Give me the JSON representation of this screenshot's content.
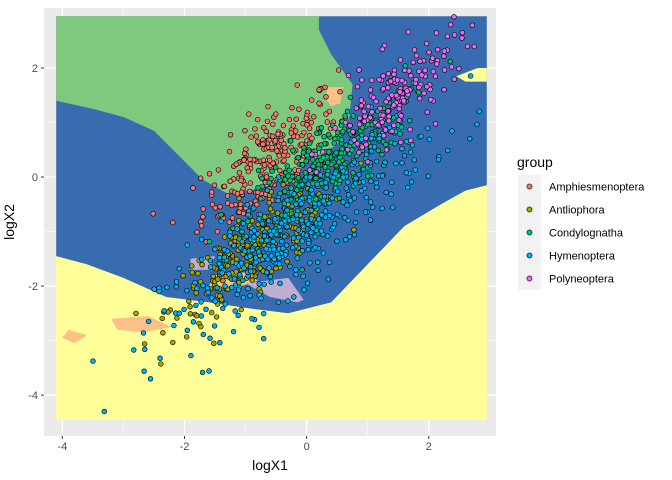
{
  "chart_data": {
    "type": "scatter",
    "xlabel": "logX1",
    "ylabel": "logX2",
    "xlim": [
      -4.3,
      3.1
    ],
    "ylim": [
      -4.75,
      3.1
    ],
    "x_ticks": [
      -4,
      -2,
      0,
      2
    ],
    "y_ticks": [
      -4,
      -2,
      0,
      2
    ],
    "x_tick_labels": [
      "-4",
      "-2",
      "0",
      "2"
    ],
    "y_tick_labels": [
      "-4",
      "-2",
      "0",
      "2"
    ],
    "grid": true,
    "legend": {
      "title": "group",
      "position": "right",
      "entries": [
        "Amphiesmenoptera",
        "Antliophora",
        "Condylognatha",
        "Hymenoptera",
        "Polyneoptera"
      ]
    },
    "series": [
      {
        "name": "Amphiesmenoptera",
        "color": "#F8766D",
        "center": [
          -0.6,
          0.3
        ],
        "spread": [
          0.55,
          0.45
        ]
      },
      {
        "name": "Antliophora",
        "color": "#A3A500",
        "center": [
          -0.8,
          -1.3
        ],
        "spread": [
          0.7,
          0.35
        ]
      },
      {
        "name": "Condylognatha",
        "color": "#00BF7D",
        "center": [
          0.3,
          0.2
        ],
        "spread": [
          0.65,
          0.4
        ]
      },
      {
        "name": "Hymenoptera",
        "color": "#00B0F6",
        "center": [
          -0.2,
          -1.0
        ],
        "spread": [
          1.1,
          0.5
        ]
      },
      {
        "name": "Polyneoptera",
        "color": "#E76BF3",
        "center": [
          1.5,
          1.5
        ],
        "spread": [
          0.55,
          0.4
        ]
      }
    ],
    "background_regions": {
      "colors": {
        "green": "#7FC97F",
        "blue": "#386CB0",
        "yellow": "#FFFF99",
        "peach": "#FDC086",
        "lavender": "#BEAED4"
      }
    },
    "colors": {
      "panel_background": "#EBEBEB",
      "grid": "#FFFFFF"
    }
  }
}
